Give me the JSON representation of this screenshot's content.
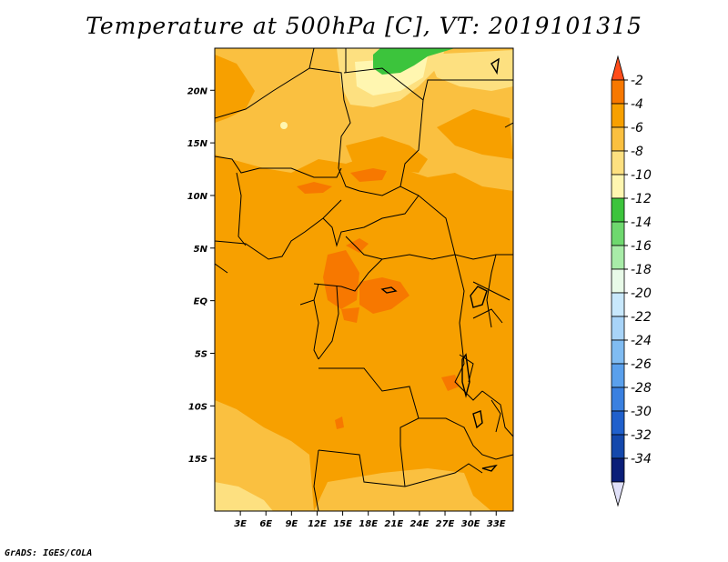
{
  "title": "Temperature at 500hPa [C], VT: 2019101315",
  "credit": "GrADS: IGES/COLA",
  "map": {
    "lon_range": [
      0,
      35
    ],
    "lat_range": [
      -20,
      24
    ],
    "base_color": "#f7a000",
    "lon_ticks": [
      "3E",
      "6E",
      "9E",
      "12E",
      "15E",
      "18E",
      "21E",
      "24E",
      "27E",
      "30E",
      "33E"
    ],
    "lat_ticks": [
      "20N",
      "15N",
      "10N",
      "5N",
      "EQ",
      "5S",
      "10S",
      "15S"
    ]
  },
  "colorbar": {
    "levels": [
      "-2",
      "-4",
      "-6",
      "-8",
      "-10",
      "-12",
      "-14",
      "-16",
      "-18",
      "-20",
      "-22",
      "-24",
      "-26",
      "-28",
      "-30",
      "-32",
      "-34"
    ],
    "colors": [
      "#ff4c1a",
      "#f77800",
      "#f7a000",
      "#fac040",
      "#fde080",
      "#fff6b0",
      "#3cc43c",
      "#6ed86e",
      "#a8eca8",
      "#e8fae8",
      "#c8e8fc",
      "#a8d4f8",
      "#80bcf2",
      "#5aa0ec",
      "#3a80e0",
      "#2060cc",
      "#1448ac",
      "#0a1e78",
      "#e0e0f8"
    ]
  }
}
